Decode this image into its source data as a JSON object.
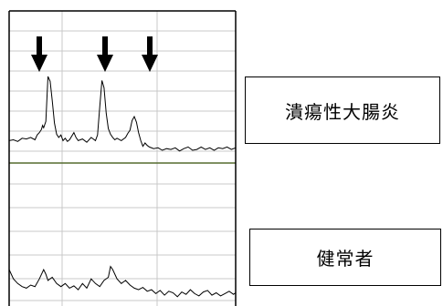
{
  "chart_data": [
    {
      "type": "line",
      "panel": "top",
      "legend_label": "潰瘍性大腸炎",
      "arrows": 3,
      "series": [
        {
          "color": "#000000",
          "points": [
            [
              0,
              20
            ],
            [
              4,
              21
            ],
            [
              8,
              19
            ],
            [
              12,
              23
            ],
            [
              16,
              22
            ],
            [
              20,
              24
            ],
            [
              24,
              21
            ],
            [
              26,
              27
            ],
            [
              28,
              30
            ],
            [
              30,
              34
            ],
            [
              31,
              39
            ],
            [
              32,
              36
            ],
            [
              34,
              44
            ],
            [
              36,
              100
            ],
            [
              38,
              94
            ],
            [
              40,
              70
            ],
            [
              42,
              42
            ],
            [
              44,
              28
            ],
            [
              46,
              24
            ],
            [
              48,
              27
            ],
            [
              50,
              20
            ],
            [
              52,
              23
            ],
            [
              54,
              19
            ],
            [
              56,
              21
            ],
            [
              60,
              30
            ],
            [
              62,
              24
            ],
            [
              64,
              20
            ],
            [
              68,
              22
            ],
            [
              72,
              18
            ],
            [
              76,
              24
            ],
            [
              80,
              20
            ],
            [
              82,
              27
            ],
            [
              84,
              62
            ],
            [
              86,
              95
            ],
            [
              88,
              86
            ],
            [
              90,
              54
            ],
            [
              92,
              35
            ],
            [
              94,
              28
            ],
            [
              96,
              24
            ],
            [
              98,
              21
            ],
            [
              100,
              23
            ],
            [
              104,
              20
            ],
            [
              108,
              24
            ],
            [
              110,
              29
            ],
            [
              112,
              33
            ],
            [
              114,
              45
            ],
            [
              116,
              50
            ],
            [
              118,
              43
            ],
            [
              120,
              30
            ],
            [
              122,
              20
            ],
            [
              124,
              13
            ],
            [
              126,
              17
            ],
            [
              128,
              14
            ],
            [
              130,
              12
            ],
            [
              134,
              10
            ],
            [
              138,
              11
            ],
            [
              142,
              8
            ],
            [
              146,
              10
            ],
            [
              150,
              9
            ],
            [
              154,
              11
            ],
            [
              158,
              7
            ],
            [
              162,
              10
            ],
            [
              166,
              12
            ],
            [
              170,
              8
            ],
            [
              174,
              9
            ],
            [
              178,
              12
            ],
            [
              182,
              9
            ],
            [
              186,
              11
            ],
            [
              190,
              8
            ],
            [
              194,
              11
            ],
            [
              198,
              10
            ],
            [
              202,
              12
            ],
            [
              206,
              9
            ],
            [
              210,
              11
            ]
          ]
        }
      ]
    },
    {
      "type": "line",
      "panel": "bottom",
      "legend_label": "健常者",
      "series": [
        {
          "color": "#000000",
          "points": [
            [
              0,
              40
            ],
            [
              4,
              28
            ],
            [
              8,
              22
            ],
            [
              12,
              18
            ],
            [
              16,
              16
            ],
            [
              20,
              20
            ],
            [
              24,
              18
            ],
            [
              28,
              28
            ],
            [
              32,
              40
            ],
            [
              34,
              34
            ],
            [
              36,
              26
            ],
            [
              40,
              30
            ],
            [
              44,
              22
            ],
            [
              48,
              18
            ],
            [
              52,
              22
            ],
            [
              56,
              16
            ],
            [
              60,
              19
            ],
            [
              64,
              14
            ],
            [
              68,
              22
            ],
            [
              72,
              16
            ],
            [
              76,
              28
            ],
            [
              80,
              22
            ],
            [
              84,
              18
            ],
            [
              88,
              26
            ],
            [
              92,
              30
            ],
            [
              94,
              44
            ],
            [
              96,
              40
            ],
            [
              100,
              28
            ],
            [
              104,
              22
            ],
            [
              108,
              26
            ],
            [
              112,
              20
            ],
            [
              116,
              16
            ],
            [
              120,
              14
            ],
            [
              124,
              17
            ],
            [
              128,
              12
            ],
            [
              132,
              14
            ],
            [
              136,
              9
            ],
            [
              140,
              13
            ],
            [
              144,
              7
            ],
            [
              148,
              12
            ],
            [
              152,
              10
            ],
            [
              156,
              5
            ],
            [
              160,
              11
            ],
            [
              164,
              8
            ],
            [
              168,
              14
            ],
            [
              172,
              9
            ],
            [
              176,
              6
            ],
            [
              180,
              11
            ],
            [
              184,
              13
            ],
            [
              188,
              7
            ],
            [
              192,
              10
            ],
            [
              196,
              6
            ],
            [
              200,
              9
            ],
            [
              204,
              12
            ],
            [
              208,
              8
            ],
            [
              210,
              10
            ]
          ]
        }
      ]
    }
  ],
  "colors": {
    "grid": "#c8c8c8",
    "divider": "#556b2f",
    "frame": "#000000",
    "trace": "#000000"
  }
}
